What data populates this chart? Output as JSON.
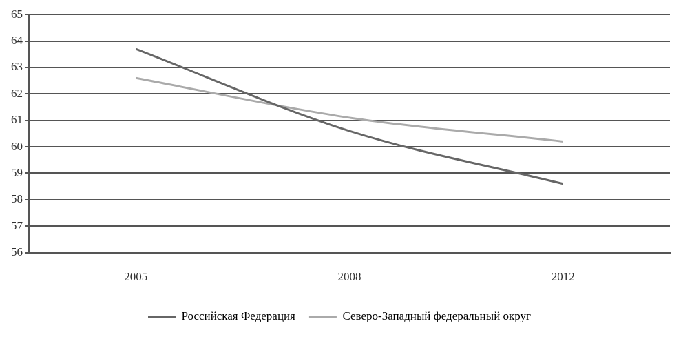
{
  "chart_data": {
    "type": "line",
    "categories": [
      "2005",
      "2008",
      "2012"
    ],
    "series": [
      {
        "name": "Российская Федерация",
        "color": "#666666",
        "values": [
          63.7,
          60.6,
          58.6
        ]
      },
      {
        "name": "Северо-Западный федеральный округ",
        "color": "#aaaaaa",
        "values": [
          62.6,
          61.1,
          60.2
        ]
      }
    ],
    "ylim": [
      56,
      65
    ],
    "yticks": [
      56,
      57,
      58,
      59,
      60,
      61,
      62,
      63,
      64,
      65
    ],
    "grid": "y",
    "legend": "bottom",
    "marker": "none",
    "line_style": "solid"
  }
}
